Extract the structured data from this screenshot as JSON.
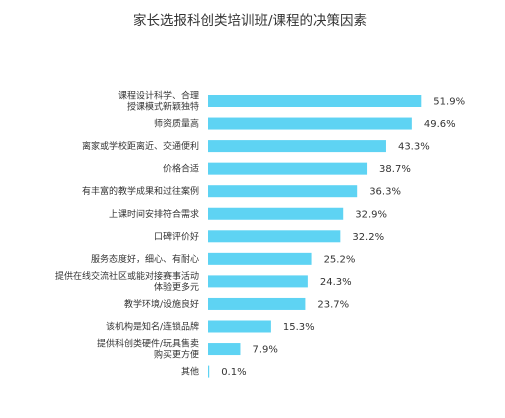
{
  "chart_data": {
    "type": "bar",
    "orientation": "horizontal",
    "title": "家长选报科创类培训班/课程的决策因素",
    "xlabel": "",
    "ylabel": "",
    "xlim": [
      0,
      60
    ],
    "grid": false,
    "legend": "none",
    "bar_color": "#5ed3f3",
    "categories": [
      [
        "课程设计科学、合理",
        "授课模式新颖独特"
      ],
      [
        "师资质量高"
      ],
      [
        "离家或学校距离近、交通便利"
      ],
      [
        "价格合适"
      ],
      [
        "有丰富的教学成果和过往案例"
      ],
      [
        "上课时间安排符合需求"
      ],
      [
        "口碑评价好"
      ],
      [
        "服务态度好，细心、有耐心"
      ],
      [
        "提供在线交流社区或能对接赛事活动",
        "体验更多元"
      ],
      [
        "教学环境/设施良好"
      ],
      [
        "该机构是知名/连锁品牌"
      ],
      [
        "提供科创类硬件/玩具售卖",
        "购买更方便"
      ],
      [
        "其他"
      ]
    ],
    "values": [
      51.9,
      49.6,
      43.3,
      38.7,
      36.3,
      32.9,
      32.2,
      25.2,
      24.3,
      23.7,
      15.3,
      7.9,
      0.1
    ],
    "value_labels": [
      "51.9%",
      "49.6%",
      "43.3%",
      "38.7%",
      "36.3%",
      "32.9%",
      "32.2%",
      "25.2%",
      "24.3%",
      "23.7%",
      "15.3%",
      "7.9%",
      "0.1%"
    ]
  }
}
